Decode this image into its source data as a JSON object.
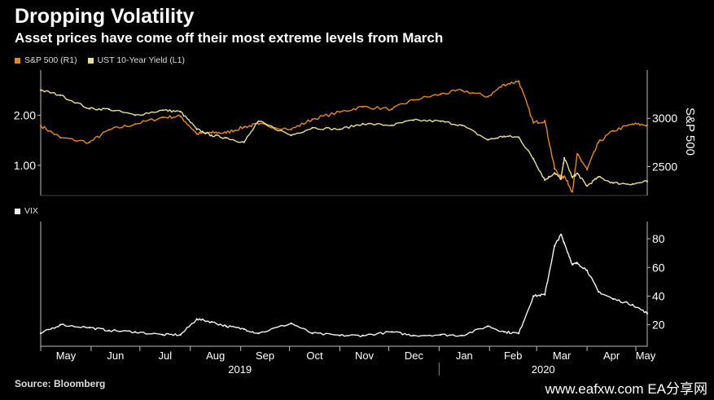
{
  "header": {
    "title": "Dropping Volatility",
    "subtitle": "Asset prices have come off their most extreme levels from March"
  },
  "legend": {
    "sp500": "S&P 500 (R1)",
    "ust": "UST 10-Year Yield (L1)",
    "vix": "VIX"
  },
  "footer": {
    "source": "Source: Bloomberg",
    "watermark": "www.eafxw.com   EA分享网"
  },
  "colors": {
    "background": "#000000",
    "sp500": "#e08a24",
    "ust": "#e8df96",
    "vix": "#f2f2f2",
    "axis": "#bbbbbb"
  },
  "chart_data": [
    {
      "type": "line",
      "title": "",
      "xlabel": "",
      "x_tick_labels": [
        "May",
        "Jun",
        "Jul",
        "Aug",
        "Sep",
        "Oct",
        "Nov",
        "Dec",
        "Jan",
        "Feb",
        "Mar",
        "Apr",
        "May"
      ],
      "x_group_labels": [
        "2019",
        "2020"
      ],
      "x_range": [
        "2019-05-01",
        "2020-05-08"
      ],
      "grid": false,
      "legend_position": "top-left",
      "y_left": {
        "label": "",
        "ticks": [
          "1.00",
          "2.00"
        ],
        "ylim": [
          0.4,
          2.9
        ]
      },
      "y_right": {
        "label": "S&P 500",
        "ticks": [
          "2500",
          "3000"
        ],
        "ylim": [
          2200,
          3500
        ]
      },
      "series": [
        {
          "name": "S&P 500 (R1)",
          "axis": "right",
          "x": [
            "2019-05-01",
            "2019-05-13",
            "2019-05-31",
            "2019-06-12",
            "2019-06-28",
            "2019-07-15",
            "2019-07-26",
            "2019-08-05",
            "2019-08-14",
            "2019-08-23",
            "2019-09-03",
            "2019-09-12",
            "2019-10-02",
            "2019-10-15",
            "2019-11-01",
            "2019-11-15",
            "2019-12-03",
            "2019-12-16",
            "2020-01-02",
            "2020-01-15",
            "2020-01-31",
            "2020-02-10",
            "2020-02-19",
            "2020-02-28",
            "2020-03-06",
            "2020-03-12",
            "2020-03-16",
            "2020-03-18",
            "2020-03-23",
            "2020-03-26",
            "2020-04-01",
            "2020-04-08",
            "2020-04-17",
            "2020-04-29",
            "2020-05-08"
          ],
          "values": [
            2925,
            2800,
            2750,
            2880,
            2940,
            3010,
            3020,
            2840,
            2850,
            2850,
            2910,
            2940,
            2885,
            2990,
            3065,
            3120,
            3095,
            3190,
            3250,
            3290,
            3225,
            3350,
            3385,
            2955,
            2975,
            2480,
            2385,
            2400,
            2240,
            2630,
            2470,
            2750,
            2870,
            2940,
            2930
          ]
        },
        {
          "name": "UST 10-Year Yield (L1)",
          "axis": "left",
          "x": [
            "2019-05-01",
            "2019-05-13",
            "2019-05-31",
            "2019-06-12",
            "2019-06-28",
            "2019-07-15",
            "2019-07-26",
            "2019-08-05",
            "2019-08-14",
            "2019-08-23",
            "2019-09-03",
            "2019-09-12",
            "2019-10-02",
            "2019-10-15",
            "2019-11-01",
            "2019-11-15",
            "2019-12-03",
            "2019-12-16",
            "2020-01-02",
            "2020-01-15",
            "2020-01-31",
            "2020-02-10",
            "2020-02-19",
            "2020-02-28",
            "2020-03-06",
            "2020-03-12",
            "2020-03-16",
            "2020-03-18",
            "2020-03-23",
            "2020-03-26",
            "2020-04-01",
            "2020-04-08",
            "2020-04-17",
            "2020-04-29",
            "2020-05-08"
          ],
          "values": [
            2.5,
            2.4,
            2.13,
            2.12,
            2.0,
            2.1,
            2.07,
            1.72,
            1.6,
            1.55,
            1.46,
            1.88,
            1.6,
            1.75,
            1.72,
            1.83,
            1.8,
            1.9,
            1.88,
            1.8,
            1.51,
            1.58,
            1.56,
            1.13,
            0.71,
            0.85,
            0.73,
            1.15,
            0.76,
            0.84,
            0.59,
            0.77,
            0.65,
            0.63,
            0.68
          ]
        }
      ]
    },
    {
      "type": "line",
      "title": "",
      "xlabel": "",
      "x_tick_labels": [
        "May",
        "Jun",
        "Jul",
        "Aug",
        "Sep",
        "Oct",
        "Nov",
        "Dec",
        "Jan",
        "Feb",
        "Mar",
        "Apr",
        "May"
      ],
      "x_group_labels": [
        "2019",
        "2020"
      ],
      "x_range": [
        "2019-05-01",
        "2020-05-08"
      ],
      "grid": false,
      "legend_position": "top-left",
      "y_right": {
        "label": "",
        "ticks": [
          "20",
          "40",
          "60",
          "80"
        ],
        "ylim": [
          5,
          92
        ]
      },
      "series": [
        {
          "name": "VIX",
          "axis": "right",
          "x": [
            "2019-05-01",
            "2019-05-13",
            "2019-05-31",
            "2019-06-12",
            "2019-06-28",
            "2019-07-15",
            "2019-07-26",
            "2019-08-05",
            "2019-08-14",
            "2019-08-23",
            "2019-09-03",
            "2019-09-12",
            "2019-10-02",
            "2019-10-15",
            "2019-11-01",
            "2019-11-15",
            "2019-12-03",
            "2019-12-16",
            "2020-01-02",
            "2020-01-15",
            "2020-01-31",
            "2020-02-10",
            "2020-02-19",
            "2020-02-28",
            "2020-03-06",
            "2020-03-12",
            "2020-03-16",
            "2020-03-18",
            "2020-03-23",
            "2020-03-26",
            "2020-04-01",
            "2020-04-08",
            "2020-04-17",
            "2020-04-29",
            "2020-05-08"
          ],
          "values": [
            14,
            20,
            18,
            16,
            15,
            13,
            13,
            24,
            22,
            19,
            17,
            14,
            21,
            14,
            12.5,
            12.5,
            15,
            12.5,
            13,
            12.5,
            19,
            15,
            14,
            40,
            41,
            75,
            83,
            77,
            62,
            63,
            58,
            43,
            38,
            34,
            28
          ]
        }
      ]
    }
  ]
}
